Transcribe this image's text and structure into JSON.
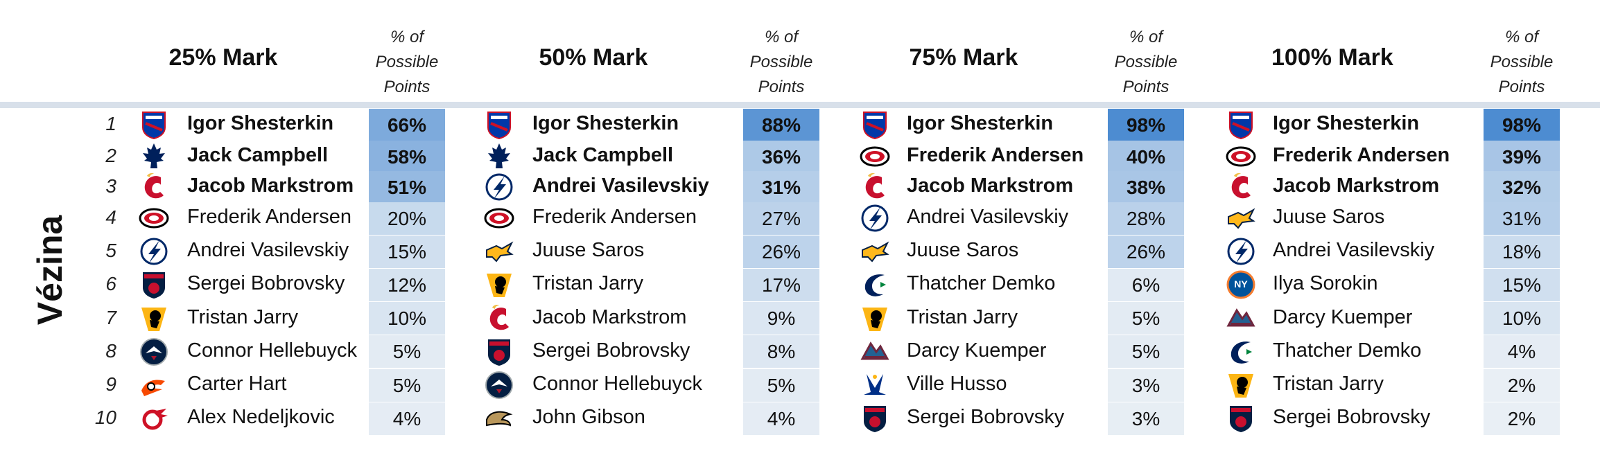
{
  "award": "Vézina",
  "pct_header": [
    "% of",
    "Possible",
    "Points"
  ],
  "colors": {
    "rule": "#d8e0ea",
    "scale_low": "#eef2f6",
    "scale_high": "#4a8ad0"
  },
  "team_colors": {
    "NYR": [
      "#0038a8",
      "#ce1126"
    ],
    "TOR": [
      "#00205b",
      "#ffffff"
    ],
    "CGY": [
      "#c8102e",
      "#f1be48"
    ],
    "CAR": [
      "#ce1126",
      "#000000"
    ],
    "TBL": [
      "#002868",
      "#ffffff"
    ],
    "FLA": [
      "#041e42",
      "#c8102e"
    ],
    "PIT": [
      "#000000",
      "#fcb514"
    ],
    "WPG": [
      "#041e42",
      "#ac162c"
    ],
    "PHI": [
      "#f74902",
      "#000000"
    ],
    "DET": [
      "#ce1126",
      "#ffffff"
    ],
    "NSH": [
      "#ffb81c",
      "#041e42"
    ],
    "ANA": [
      "#b9975b",
      "#000000"
    ],
    "VAN": [
      "#00205b",
      "#00843d"
    ],
    "COL": [
      "#6f263d",
      "#236192"
    ],
    "STL": [
      "#002f87",
      "#fcb514"
    ],
    "NYI": [
      "#00539b",
      "#f47d30"
    ]
  },
  "chart_data": {
    "type": "table",
    "title": "",
    "row_labels": [
      "1",
      "2",
      "3",
      "4",
      "5",
      "6",
      "7",
      "8",
      "9",
      "10"
    ],
    "columns": [
      {
        "label": "25% Mark",
        "rows": [
          {
            "player": "Igor Shesterkin",
            "team": "NYR",
            "pct": 66,
            "pct_label": "66%",
            "bold": true
          },
          {
            "player": "Jack Campbell",
            "team": "TOR",
            "pct": 58,
            "pct_label": "58%",
            "bold": true
          },
          {
            "player": "Jacob Markstrom",
            "team": "CGY",
            "pct": 51,
            "pct_label": "51%",
            "bold": true
          },
          {
            "player": "Frederik Andersen",
            "team": "CAR",
            "pct": 20,
            "pct_label": "20%",
            "bold": false
          },
          {
            "player": "Andrei Vasilevskiy",
            "team": "TBL",
            "pct": 15,
            "pct_label": "15%",
            "bold": false
          },
          {
            "player": "Sergei Bobrovsky",
            "team": "FLA",
            "pct": 12,
            "pct_label": "12%",
            "bold": false
          },
          {
            "player": "Tristan Jarry",
            "team": "PIT",
            "pct": 10,
            "pct_label": "10%",
            "bold": false
          },
          {
            "player": "Connor Hellebuyck",
            "team": "WPG",
            "pct": 5,
            "pct_label": "5%",
            "bold": false
          },
          {
            "player": "Carter Hart",
            "team": "PHI",
            "pct": 5,
            "pct_label": "5%",
            "bold": false
          },
          {
            "player": "Alex Nedeljkovic",
            "team": "DET",
            "pct": 4,
            "pct_label": "4%",
            "bold": false
          }
        ]
      },
      {
        "label": "50% Mark",
        "rows": [
          {
            "player": "Igor Shesterkin",
            "team": "NYR",
            "pct": 88,
            "pct_label": "88%",
            "bold": true
          },
          {
            "player": "Jack Campbell",
            "team": "TOR",
            "pct": 36,
            "pct_label": "36%",
            "bold": true
          },
          {
            "player": "Andrei Vasilevskiy",
            "team": "TBL",
            "pct": 31,
            "pct_label": "31%",
            "bold": true
          },
          {
            "player": "Frederik Andersen",
            "team": "CAR",
            "pct": 27,
            "pct_label": "27%",
            "bold": false
          },
          {
            "player": "Juuse Saros",
            "team": "NSH",
            "pct": 26,
            "pct_label": "26%",
            "bold": false
          },
          {
            "player": "Tristan Jarry",
            "team": "PIT",
            "pct": 17,
            "pct_label": "17%",
            "bold": false
          },
          {
            "player": "Jacob Markstrom",
            "team": "CGY",
            "pct": 9,
            "pct_label": "9%",
            "bold": false
          },
          {
            "player": "Sergei Bobrovsky",
            "team": "FLA",
            "pct": 8,
            "pct_label": "8%",
            "bold": false
          },
          {
            "player": "Connor Hellebuyck",
            "team": "WPG",
            "pct": 5,
            "pct_label": "5%",
            "bold": false
          },
          {
            "player": "John Gibson",
            "team": "ANA",
            "pct": 4,
            "pct_label": "4%",
            "bold": false
          }
        ]
      },
      {
        "label": "75% Mark",
        "rows": [
          {
            "player": "Igor Shesterkin",
            "team": "NYR",
            "pct": 98,
            "pct_label": "98%",
            "bold": true
          },
          {
            "player": "Frederik Andersen",
            "team": "CAR",
            "pct": 40,
            "pct_label": "40%",
            "bold": true
          },
          {
            "player": "Jacob Markstrom",
            "team": "CGY",
            "pct": 38,
            "pct_label": "38%",
            "bold": true
          },
          {
            "player": "Andrei Vasilevskiy",
            "team": "TBL",
            "pct": 28,
            "pct_label": "28%",
            "bold": false
          },
          {
            "player": "Juuse Saros",
            "team": "NSH",
            "pct": 26,
            "pct_label": "26%",
            "bold": false
          },
          {
            "player": "Thatcher Demko",
            "team": "VAN",
            "pct": 6,
            "pct_label": "6%",
            "bold": false
          },
          {
            "player": "Tristan Jarry",
            "team": "PIT",
            "pct": 5,
            "pct_label": "5%",
            "bold": false
          },
          {
            "player": "Darcy Kuemper",
            "team": "COL",
            "pct": 5,
            "pct_label": "5%",
            "bold": false
          },
          {
            "player": "Ville Husso",
            "team": "STL",
            "pct": 3,
            "pct_label": "3%",
            "bold": false
          },
          {
            "player": "Sergei Bobrovsky",
            "team": "FLA",
            "pct": 3,
            "pct_label": "3%",
            "bold": false
          }
        ]
      },
      {
        "label": "100% Mark",
        "rows": [
          {
            "player": "Igor Shesterkin",
            "team": "NYR",
            "pct": 98,
            "pct_label": "98%",
            "bold": true
          },
          {
            "player": "Frederik Andersen",
            "team": "CAR",
            "pct": 39,
            "pct_label": "39%",
            "bold": true
          },
          {
            "player": "Jacob Markstrom",
            "team": "CGY",
            "pct": 32,
            "pct_label": "32%",
            "bold": true
          },
          {
            "player": "Juuse Saros",
            "team": "NSH",
            "pct": 31,
            "pct_label": "31%",
            "bold": false
          },
          {
            "player": "Andrei Vasilevskiy",
            "team": "TBL",
            "pct": 18,
            "pct_label": "18%",
            "bold": false
          },
          {
            "player": "Ilya Sorokin",
            "team": "NYI",
            "pct": 15,
            "pct_label": "15%",
            "bold": false
          },
          {
            "player": "Darcy Kuemper",
            "team": "COL",
            "pct": 10,
            "pct_label": "10%",
            "bold": false
          },
          {
            "player": "Thatcher Demko",
            "team": "VAN",
            "pct": 4,
            "pct_label": "4%",
            "bold": false
          },
          {
            "player": "Tristan Jarry",
            "team": "PIT",
            "pct": 2,
            "pct_label": "2%",
            "bold": false
          },
          {
            "player": "Sergei Bobrovsky",
            "team": "FLA",
            "pct": 2,
            "pct_label": "2%",
            "bold": false
          }
        ]
      }
    ]
  }
}
